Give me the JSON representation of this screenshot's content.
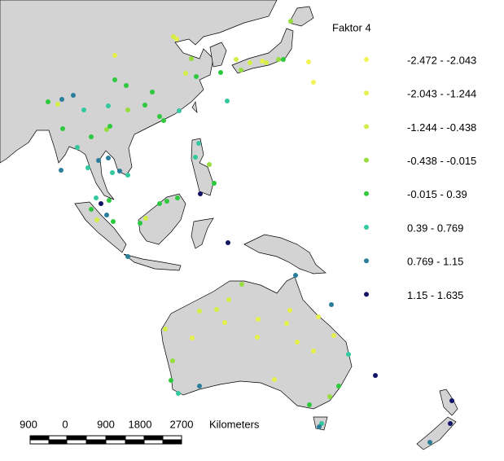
{
  "legend": {
    "title": "Faktor 4",
    "classes": [
      {
        "label": "-2.472 - -2.043",
        "color": "#f4f45a"
      },
      {
        "label": "-2.043 - -1.244",
        "color": "#e6f04c"
      },
      {
        "label": "-1.244 - -0.438",
        "color": "#d4ec46"
      },
      {
        "label": "-0.438 - -0.015",
        "color": "#96de3e"
      },
      {
        "label": "-0.015 - 0.39",
        "color": "#2ec83c"
      },
      {
        "label": "0.39 - 0.769",
        "color": "#33c8a0"
      },
      {
        "label": "0.769 - 1.15",
        "color": "#2a7e9a"
      },
      {
        "label": "1.15 - 1.635",
        "color": "#141466"
      }
    ]
  },
  "scale_bar": {
    "labels": [
      "900",
      "0",
      "900",
      "1800",
      "2700"
    ],
    "unit": "Kilometers"
  }
}
